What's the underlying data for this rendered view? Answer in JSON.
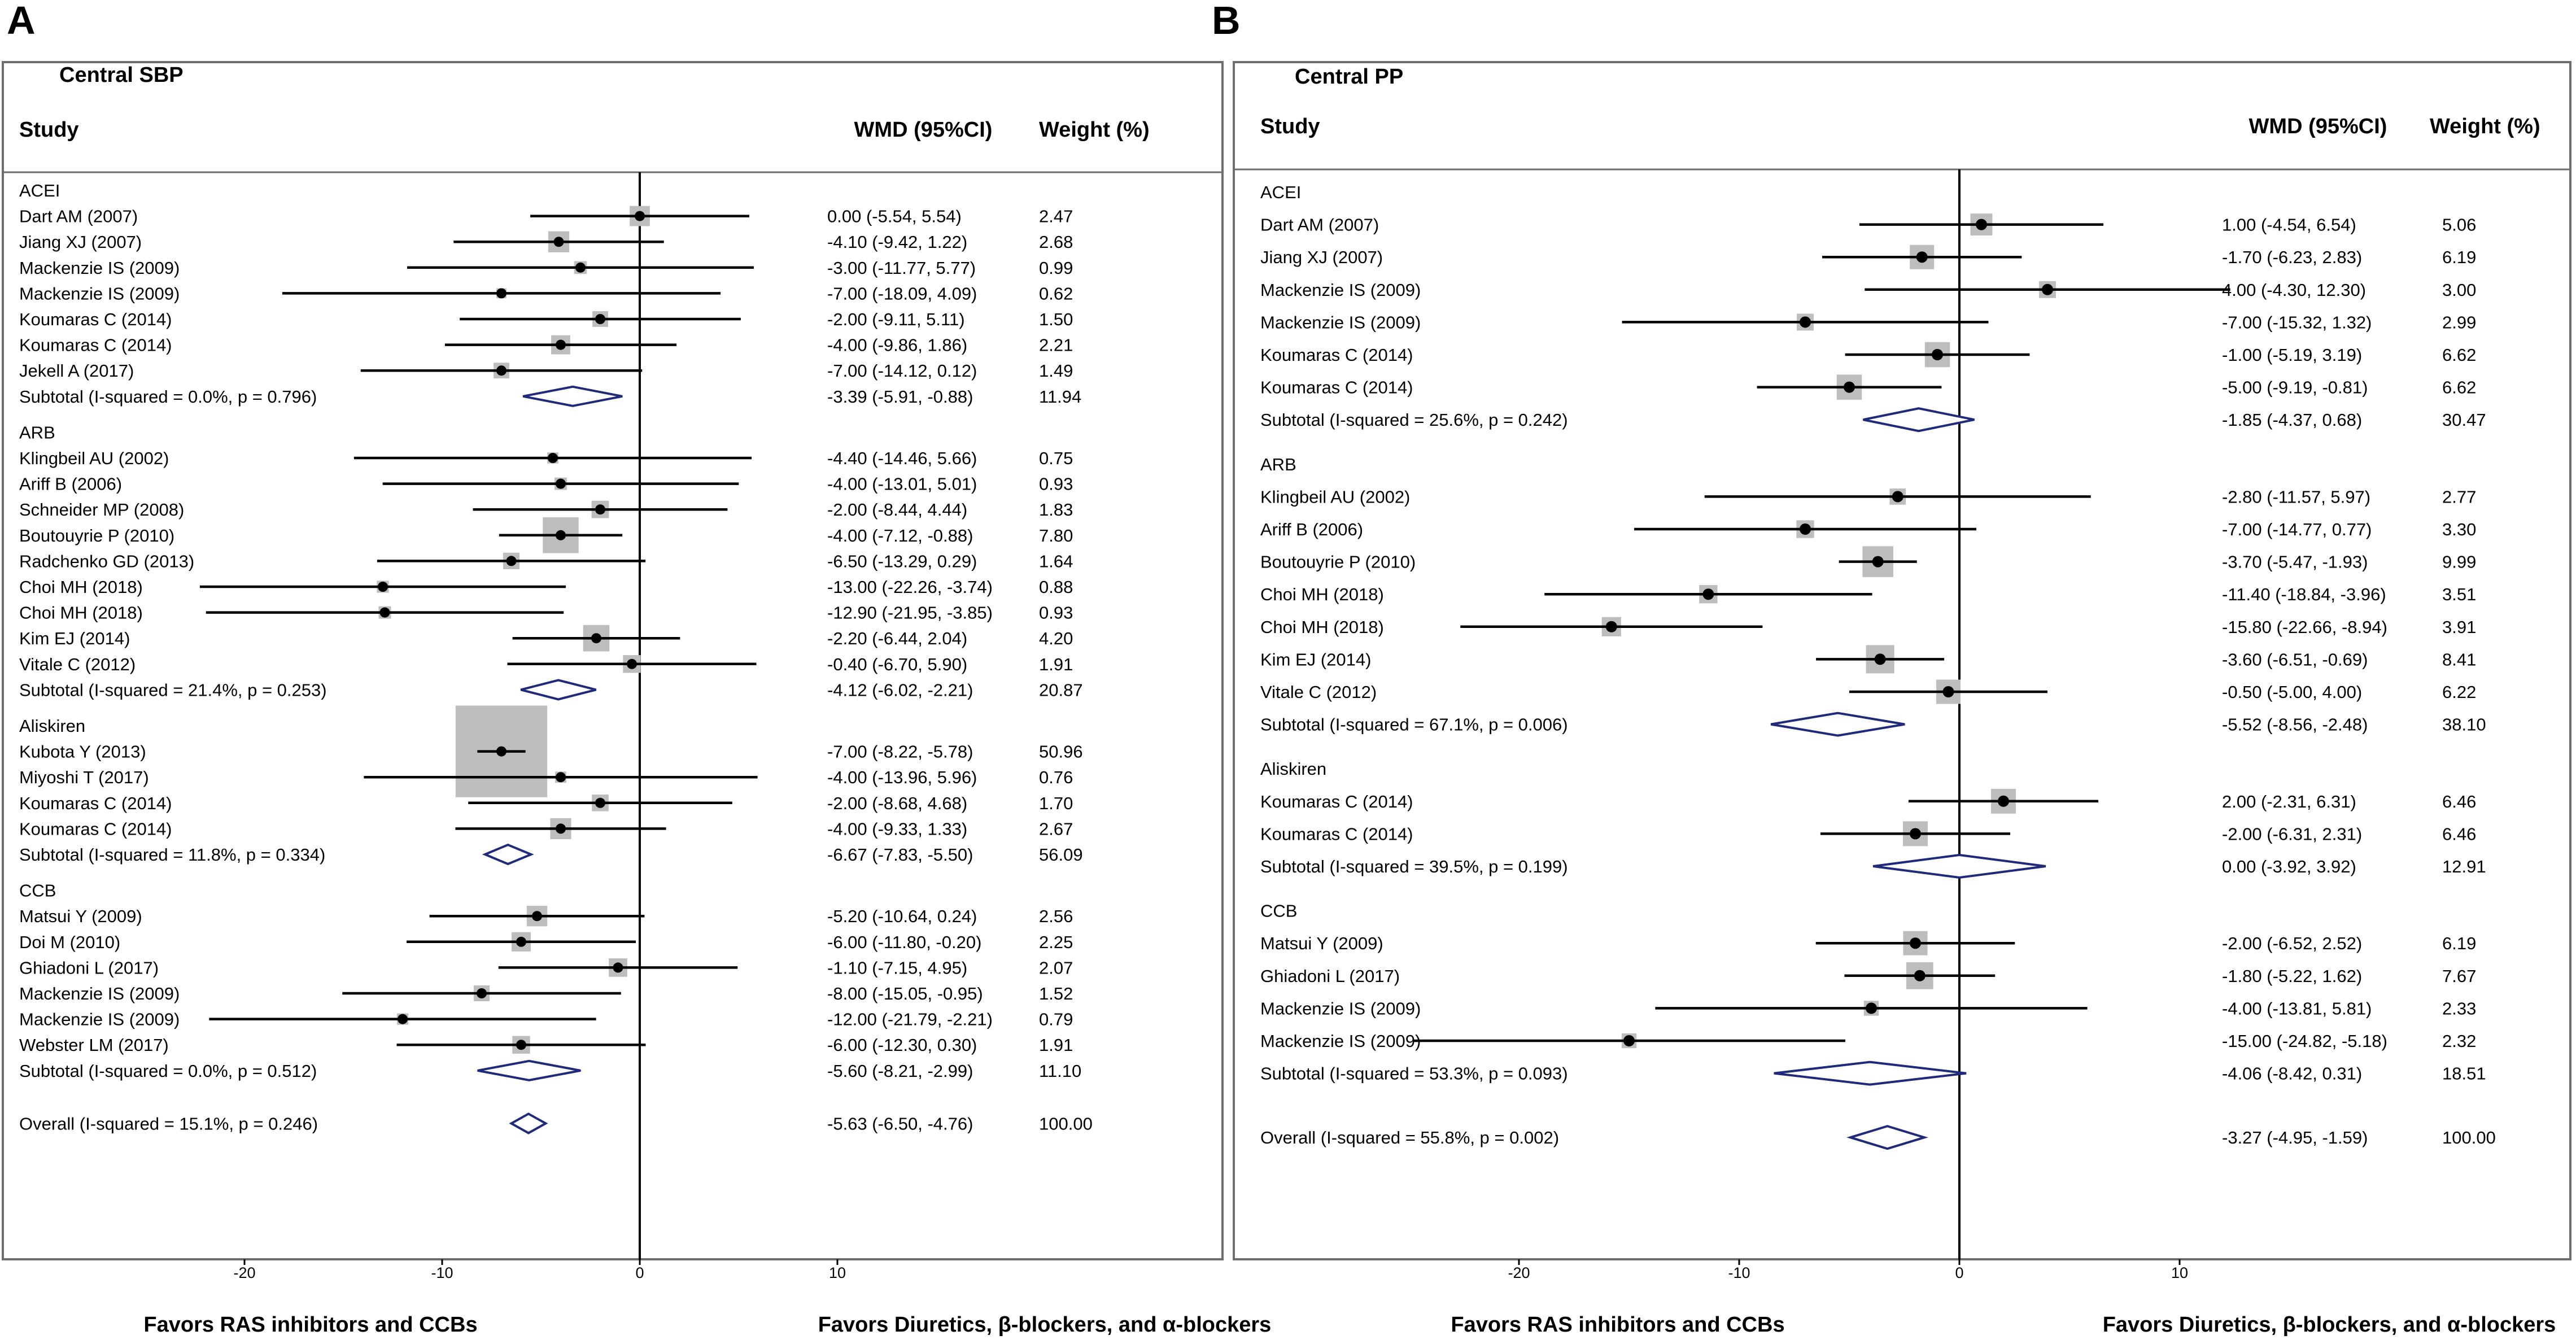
{
  "chart_data": [
    {
      "type": "forest",
      "panel": "A",
      "title": "Central SBP",
      "columns": {
        "study": "Study",
        "estimate": "WMD (95%CI)",
        "weight": "Weight (%)"
      },
      "xaxis": {
        "min": -20,
        "max": 10,
        "ticks": [
          -20,
          -10,
          0,
          10
        ],
        "tick_labels": [
          "-20",
          "-10",
          "0",
          "10"
        ]
      },
      "xlabel_left": "Favors RAS inhibitors and CCBs",
      "xlabel_right": "Favors Diuretics, β-blockers, and α-blockers",
      "groups": [
        {
          "name": "ACEI",
          "studies": [
            {
              "study": "Dart AM (2007)",
              "est": 0.0,
              "lo": -5.54,
              "hi": 5.54,
              "ci_text": "0.00 (-5.54, 5.54)",
              "weight": "2.47"
            },
            {
              "study": "Jiang XJ (2007)",
              "est": -4.1,
              "lo": -9.42,
              "hi": 1.22,
              "ci_text": "-4.10 (-9.42, 1.22)",
              "weight": "2.68"
            },
            {
              "study": "Mackenzie IS (2009)",
              "est": -3.0,
              "lo": -11.77,
              "hi": 5.77,
              "ci_text": "-3.00 (-11.77, 5.77)",
              "weight": "0.99"
            },
            {
              "study": "Mackenzie IS (2009)",
              "est": -7.0,
              "lo": -18.09,
              "hi": 4.09,
              "ci_text": "-7.00 (-18.09, 4.09)",
              "weight": "0.62"
            },
            {
              "study": "Koumaras C (2014)",
              "est": -2.0,
              "lo": -9.11,
              "hi": 5.11,
              "ci_text": "-2.00 (-9.11, 5.11)",
              "weight": "1.50"
            },
            {
              "study": "Koumaras C (2014)",
              "est": -4.0,
              "lo": -9.86,
              "hi": 1.86,
              "ci_text": "-4.00 (-9.86, 1.86)",
              "weight": "2.21"
            },
            {
              "study": "Jekell A (2017)",
              "est": -7.0,
              "lo": -14.12,
              "hi": 0.12,
              "ci_text": "-7.00 (-14.12, 0.12)",
              "weight": "1.49"
            }
          ],
          "subtotal": {
            "label": "Subtotal  (I-squared = 0.0%, p = 0.796)",
            "est": -3.39,
            "lo": -5.91,
            "hi": -0.88,
            "ci_text": "-3.39 (-5.91, -0.88)",
            "weight": "11.94"
          }
        },
        {
          "name": "ARB",
          "studies": [
            {
              "study": "Klingbeil AU (2002)",
              "est": -4.4,
              "lo": -14.46,
              "hi": 5.66,
              "ci_text": "-4.40 (-14.46, 5.66)",
              "weight": "0.75"
            },
            {
              "study": "Ariff B (2006)",
              "est": -4.0,
              "lo": -13.01,
              "hi": 5.01,
              "ci_text": "-4.00 (-13.01, 5.01)",
              "weight": "0.93"
            },
            {
              "study": "Schneider MP (2008)",
              "est": -2.0,
              "lo": -8.44,
              "hi": 4.44,
              "ci_text": "-2.00 (-8.44, 4.44)",
              "weight": "1.83"
            },
            {
              "study": "Boutouyrie P (2010)",
              "est": -4.0,
              "lo": -7.12,
              "hi": -0.88,
              "ci_text": "-4.00 (-7.12, -0.88)",
              "weight": "7.80"
            },
            {
              "study": "Radchenko GD (2013)",
              "est": -6.5,
              "lo": -13.29,
              "hi": 0.29,
              "ci_text": "-6.50 (-13.29, 0.29)",
              "weight": "1.64"
            },
            {
              "study": "Choi MH (2018)",
              "est": -13.0,
              "lo": -22.26,
              "hi": -3.74,
              "ci_text": "-13.00 (-22.26, -3.74)",
              "weight": "0.88"
            },
            {
              "study": "Choi MH (2018)",
              "est": -12.9,
              "lo": -21.95,
              "hi": -3.85,
              "ci_text": "-12.90 (-21.95, -3.85)",
              "weight": "0.93"
            },
            {
              "study": "Kim EJ (2014)",
              "est": -2.2,
              "lo": -6.44,
              "hi": 2.04,
              "ci_text": "-2.20 (-6.44, 2.04)",
              "weight": "4.20"
            },
            {
              "study": "Vitale C (2012)",
              "est": -0.4,
              "lo": -6.7,
              "hi": 5.9,
              "ci_text": "-0.40 (-6.70, 5.90)",
              "weight": "1.91"
            }
          ],
          "subtotal": {
            "label": "Subtotal  (I-squared = 21.4%, p = 0.253)",
            "est": -4.12,
            "lo": -6.02,
            "hi": -2.21,
            "ci_text": "-4.12 (-6.02, -2.21)",
            "weight": "20.87"
          }
        },
        {
          "name": "Aliskiren",
          "studies": [
            {
              "study": "Kubota Y (2013)",
              "est": -7.0,
              "lo": -8.22,
              "hi": -5.78,
              "ci_text": "-7.00 (-8.22, -5.78)",
              "weight": "50.96"
            },
            {
              "study": "Miyoshi T (2017)",
              "est": -4.0,
              "lo": -13.96,
              "hi": 5.96,
              "ci_text": "-4.00 (-13.96, 5.96)",
              "weight": "0.76"
            },
            {
              "study": "Koumaras C (2014)",
              "est": -2.0,
              "lo": -8.68,
              "hi": 4.68,
              "ci_text": "-2.00 (-8.68, 4.68)",
              "weight": "1.70"
            },
            {
              "study": "Koumaras C (2014)",
              "est": -4.0,
              "lo": -9.33,
              "hi": 1.33,
              "ci_text": "-4.00 (-9.33, 1.33)",
              "weight": "2.67"
            }
          ],
          "subtotal": {
            "label": "Subtotal  (I-squared = 11.8%, p = 0.334)",
            "est": -6.67,
            "lo": -7.83,
            "hi": -5.5,
            "ci_text": "-6.67 (-7.83, -5.50)",
            "weight": "56.09"
          }
        },
        {
          "name": "CCB",
          "studies": [
            {
              "study": "Matsui Y (2009)",
              "est": -5.2,
              "lo": -10.64,
              "hi": 0.24,
              "ci_text": "-5.20 (-10.64, 0.24)",
              "weight": "2.56"
            },
            {
              "study": "Doi M (2010)",
              "est": -6.0,
              "lo": -11.8,
              "hi": -0.2,
              "ci_text": "-6.00 (-11.80, -0.20)",
              "weight": "2.25"
            },
            {
              "study": "Ghiadoni L (2017)",
              "est": -1.1,
              "lo": -7.15,
              "hi": 4.95,
              "ci_text": "-1.10 (-7.15, 4.95)",
              "weight": "2.07"
            },
            {
              "study": "Mackenzie IS (2009)",
              "est": -8.0,
              "lo": -15.05,
              "hi": -0.95,
              "ci_text": "-8.00 (-15.05, -0.95)",
              "weight": "1.52"
            },
            {
              "study": "Mackenzie IS (2009)",
              "est": -12.0,
              "lo": -21.79,
              "hi": -2.21,
              "ci_text": "-12.00 (-21.79, -2.21)",
              "weight": "0.79"
            },
            {
              "study": "Webster LM (2017)",
              "est": -6.0,
              "lo": -12.3,
              "hi": 0.3,
              "ci_text": "-6.00 (-12.30, 0.30)",
              "weight": "1.91"
            }
          ],
          "subtotal": {
            "label": "Subtotal  (I-squared = 0.0%, p = 0.512)",
            "est": -5.6,
            "lo": -8.21,
            "hi": -2.99,
            "ci_text": "-5.60 (-8.21, -2.99)",
            "weight": "11.10"
          }
        }
      ],
      "overall": {
        "label": "Overall  (I-squared = 15.1%, p = 0.246)",
        "est": -5.63,
        "lo": -6.5,
        "hi": -4.76,
        "ci_text": "-5.63 (-6.50, -4.76)",
        "weight": "100.00"
      }
    },
    {
      "type": "forest",
      "panel": "B",
      "title": "Central PP",
      "columns": {
        "study": "Study",
        "estimate": "WMD (95%CI)",
        "weight": "Weight (%)"
      },
      "xaxis": {
        "min": -20,
        "max": 10,
        "ticks": [
          -20,
          -10,
          0,
          10
        ],
        "tick_labels": [
          "-20",
          "-10",
          "0",
          "10"
        ]
      },
      "xlabel_left": "Favors RAS inhibitors and CCBs",
      "xlabel_right": "Favors Diuretics, β-blockers, and α-blockers",
      "groups": [
        {
          "name": "ACEI",
          "studies": [
            {
              "study": "Dart AM (2007)",
              "est": 1.0,
              "lo": -4.54,
              "hi": 6.54,
              "ci_text": "1.00 (-4.54, 6.54)",
              "weight": "5.06"
            },
            {
              "study": "Jiang XJ (2007)",
              "est": -1.7,
              "lo": -6.23,
              "hi": 2.83,
              "ci_text": "-1.70 (-6.23, 2.83)",
              "weight": "6.19"
            },
            {
              "study": "Mackenzie IS (2009)",
              "est": 4.0,
              "lo": -4.3,
              "hi": 12.3,
              "ci_text": "4.00 (-4.30, 12.30)",
              "weight": "3.00"
            },
            {
              "study": "Mackenzie IS (2009)",
              "est": -7.0,
              "lo": -15.32,
              "hi": 1.32,
              "ci_text": "-7.00 (-15.32, 1.32)",
              "weight": "2.99"
            },
            {
              "study": "Koumaras C (2014)",
              "est": -1.0,
              "lo": -5.19,
              "hi": 3.19,
              "ci_text": "-1.00 (-5.19, 3.19)",
              "weight": "6.62"
            },
            {
              "study": "Koumaras C (2014)",
              "est": -5.0,
              "lo": -9.19,
              "hi": -0.81,
              "ci_text": "-5.00 (-9.19, -0.81)",
              "weight": "6.62"
            }
          ],
          "subtotal": {
            "label": "Subtotal  (I-squared = 25.6%, p = 0.242)",
            "est": -1.85,
            "lo": -4.37,
            "hi": 0.68,
            "ci_text": "-1.85 (-4.37, 0.68)",
            "weight": "30.47"
          }
        },
        {
          "name": "ARB",
          "studies": [
            {
              "study": "Klingbeil AU (2002)",
              "est": -2.8,
              "lo": -11.57,
              "hi": 5.97,
              "ci_text": "-2.80 (-11.57, 5.97)",
              "weight": "2.77"
            },
            {
              "study": "Ariff B (2006)",
              "est": -7.0,
              "lo": -14.77,
              "hi": 0.77,
              "ci_text": "-7.00 (-14.77, 0.77)",
              "weight": "3.30"
            },
            {
              "study": "Boutouyrie P (2010)",
              "est": -3.7,
              "lo": -5.47,
              "hi": -1.93,
              "ci_text": "-3.70 (-5.47, -1.93)",
              "weight": "9.99"
            },
            {
              "study": "Choi MH (2018)",
              "est": -11.4,
              "lo": -18.84,
              "hi": -3.96,
              "ci_text": "-11.40 (-18.84, -3.96)",
              "weight": "3.51"
            },
            {
              "study": "Choi MH (2018)",
              "est": -15.8,
              "lo": -22.66,
              "hi": -8.94,
              "ci_text": "-15.80 (-22.66, -8.94)",
              "weight": "3.91"
            },
            {
              "study": "Kim EJ (2014)",
              "est": -3.6,
              "lo": -6.51,
              "hi": -0.69,
              "ci_text": "-3.60 (-6.51, -0.69)",
              "weight": "8.41"
            },
            {
              "study": "Vitale C (2012)",
              "est": -0.5,
              "lo": -5.0,
              "hi": 4.0,
              "ci_text": "-0.50 (-5.00, 4.00)",
              "weight": "6.22"
            }
          ],
          "subtotal": {
            "label": "Subtotal  (I-squared = 67.1%, p = 0.006)",
            "est": -5.52,
            "lo": -8.56,
            "hi": -2.48,
            "ci_text": "-5.52 (-8.56, -2.48)",
            "weight": "38.10"
          }
        },
        {
          "name": "Aliskiren",
          "studies": [
            {
              "study": "Koumaras C (2014)",
              "est": 2.0,
              "lo": -2.31,
              "hi": 6.31,
              "ci_text": "2.00 (-2.31, 6.31)",
              "weight": "6.46"
            },
            {
              "study": "Koumaras C (2014)",
              "est": -2.0,
              "lo": -6.31,
              "hi": 2.31,
              "ci_text": "-2.00 (-6.31, 2.31)",
              "weight": "6.46"
            }
          ],
          "subtotal": {
            "label": "Subtotal  (I-squared = 39.5%, p = 0.199)",
            "est": 0.0,
            "lo": -3.92,
            "hi": 3.92,
            "ci_text": "0.00 (-3.92, 3.92)",
            "weight": "12.91"
          }
        },
        {
          "name": "CCB",
          "studies": [
            {
              "study": "Matsui Y (2009)",
              "est": -2.0,
              "lo": -6.52,
              "hi": 2.52,
              "ci_text": "-2.00 (-6.52, 2.52)",
              "weight": "6.19"
            },
            {
              "study": "Ghiadoni L (2017)",
              "est": -1.8,
              "lo": -5.22,
              "hi": 1.62,
              "ci_text": "-1.80 (-5.22, 1.62)",
              "weight": "7.67"
            },
            {
              "study": "Mackenzie IS (2009)",
              "est": -4.0,
              "lo": -13.81,
              "hi": 5.81,
              "ci_text": "-4.00 (-13.81, 5.81)",
              "weight": "2.33"
            },
            {
              "study": "Mackenzie IS (2009)",
              "est": -15.0,
              "lo": -24.82,
              "hi": -5.18,
              "ci_text": "-15.00 (-24.82, -5.18)",
              "weight": "2.32"
            }
          ],
          "subtotal": {
            "label": "Subtotal  (I-squared = 53.3%, p = 0.093)",
            "est": -4.06,
            "lo": -8.42,
            "hi": 0.31,
            "ci_text": "-4.06 (-8.42, 0.31)",
            "weight": "18.51"
          }
        }
      ],
      "overall": {
        "label": "Overall  (I-squared = 55.8%, p = 0.002)",
        "est": -3.27,
        "lo": -4.95,
        "hi": -1.59,
        "ci_text": "-3.27 (-4.95, -1.59)",
        "weight": "100.00"
      }
    }
  ],
  "colors": {
    "diamond": "#1f2a7a",
    "weight_box": "#bdbdbd",
    "line": "#000000",
    "frame": "#6e6e6e"
  }
}
